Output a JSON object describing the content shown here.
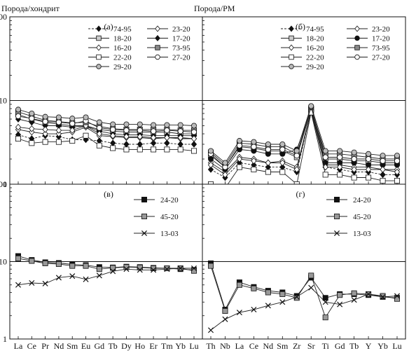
{
  "chart_data": [
    {
      "type": "line",
      "panel_label": "(а)",
      "ylabel": "Порода/хондрит",
      "yscale": "log",
      "ylim": [
        1,
        100
      ],
      "ytick_labels": [
        "1",
        "10",
        "100"
      ],
      "reference_line": 10,
      "categories": [
        "La",
        "Ce",
        "Pr",
        "Nd",
        "Sm",
        "Eu",
        "Gd",
        "Tb",
        "Dy",
        "Ho",
        "Er",
        "Tm",
        "Yb",
        "Lu"
      ],
      "show_xlabels": false,
      "legend_columns": 2,
      "series": [
        {
          "name": "74-95",
          "marker": "diamond",
          "fill": "#111",
          "dash": "3,2",
          "values": [
            3.9,
            3.5,
            3.8,
            3.7,
            3.4,
            3.4,
            3.3,
            3.1,
            3.0,
            3.0,
            3.1,
            3.1,
            3.0,
            3.0
          ]
        },
        {
          "name": "23-20",
          "marker": "diamond",
          "fill": "#fff",
          "dash": "",
          "values": [
            4.5,
            4.2,
            4.0,
            4.0,
            4.2,
            4.8,
            3.8,
            3.7,
            3.6,
            3.6,
            3.5,
            3.6,
            3.5,
            3.5
          ]
        },
        {
          "name": "18-20",
          "marker": "square",
          "fill": "#ccc",
          "dash": "",
          "values": [
            6.8,
            6.0,
            5.5,
            5.2,
            5.0,
            5.0,
            4.5,
            4.3,
            4.2,
            4.2,
            4.2,
            4.2,
            4.0,
            4.0
          ]
        },
        {
          "name": "17-20",
          "marker": "diamond",
          "fill": "#111",
          "dash": "",
          "values": [
            6.0,
            5.5,
            5.0,
            5.0,
            4.8,
            5.0,
            4.3,
            4.0,
            3.9,
            3.9,
            3.8,
            3.8,
            3.8,
            3.8
          ]
        },
        {
          "name": "16-20",
          "marker": "diamond",
          "fill": "#fff",
          "dash": "",
          "values": [
            4.8,
            4.6,
            4.5,
            4.4,
            4.4,
            5.0,
            4.0,
            3.8,
            3.7,
            3.7,
            3.6,
            3.6,
            3.6,
            3.5
          ]
        },
        {
          "name": "73-95",
          "marker": "square",
          "fill": "#888",
          "dash": "",
          "values": [
            7.3,
            6.5,
            5.8,
            5.6,
            5.4,
            5.5,
            4.9,
            4.6,
            4.5,
            4.5,
            4.5,
            4.5,
            4.4,
            4.4
          ]
        },
        {
          "name": "22-20",
          "marker": "square",
          "fill": "#fff",
          "dash": "",
          "values": [
            3.5,
            3.1,
            3.2,
            3.2,
            3.3,
            3.8,
            2.9,
            2.7,
            2.6,
            2.6,
            2.6,
            2.6,
            2.6,
            2.5
          ]
        },
        {
          "name": "27-20",
          "marker": "circle",
          "fill": "#fff",
          "dash": "",
          "values": [
            6.5,
            6.1,
            5.6,
            5.5,
            5.3,
            5.7,
            4.7,
            4.5,
            4.4,
            4.4,
            4.3,
            4.4,
            4.3,
            4.2
          ]
        },
        {
          "name": "29-20",
          "marker": "circle",
          "fill": "#bbb",
          "dash": "",
          "values": [
            7.8,
            7.0,
            6.4,
            6.3,
            6.1,
            6.3,
            5.5,
            5.2,
            5.2,
            5.2,
            5.1,
            5.1,
            5.1,
            5.0
          ]
        }
      ]
    },
    {
      "type": "line",
      "panel_label": "(б)",
      "ylabel": "Порода/PM",
      "yscale": "log",
      "ylim": [
        1,
        100
      ],
      "ytick_labels": [],
      "reference_line": 10,
      "categories": [
        "Th",
        "Nb",
        "La",
        "Ce",
        "Nd",
        "Sm",
        "Zr",
        "Sr",
        "Ti",
        "Gd",
        "Tb",
        "Y",
        "Yb",
        "Lu"
      ],
      "show_xlabels": false,
      "legend_columns": 2,
      "series": [
        {
          "name": "74-95",
          "marker": "diamond",
          "fill": "#111",
          "dash": "3,2",
          "values": [
            1.5,
            1.2,
            1.8,
            1.7,
            1.6,
            1.6,
            1.4,
            7.5,
            1.6,
            1.5,
            1.4,
            1.4,
            1.3,
            1.3
          ]
        },
        {
          "name": "23-20",
          "marker": "diamond",
          "fill": "#fff",
          "dash": "",
          "values": [
            1.8,
            1.4,
            2.1,
            2.0,
            1.8,
            1.9,
            1.6,
            7.6,
            1.7,
            1.7,
            1.6,
            1.6,
            1.5,
            1.5
          ]
        },
        {
          "name": "18-20",
          "marker": "square",
          "fill": "#ccc",
          "dash": "",
          "values": [
            2.2,
            1.6,
            2.8,
            2.7,
            2.5,
            2.5,
            2.1,
            7.8,
            2.0,
            2.0,
            1.9,
            1.9,
            1.8,
            1.8
          ]
        },
        {
          "name": "17-20",
          "marker": "circle",
          "fill": "#111",
          "dash": "",
          "values": [
            2.0,
            1.5,
            2.6,
            2.5,
            2.3,
            2.3,
            2.6,
            7.7,
            1.8,
            1.8,
            1.8,
            1.7,
            1.7,
            1.7
          ]
        },
        {
          "name": "16-20",
          "marker": "diamond",
          "fill": "#fff",
          "dash": "",
          "values": [
            1.7,
            1.3,
            2.0,
            1.9,
            1.8,
            1.8,
            1.5,
            7.4,
            1.6,
            1.6,
            1.5,
            1.5,
            1.5,
            1.4
          ]
        },
        {
          "name": "73-95",
          "marker": "square",
          "fill": "#888",
          "dash": "",
          "values": [
            2.4,
            1.7,
            3.1,
            3.0,
            2.8,
            2.8,
            2.3,
            8.0,
            2.3,
            2.3,
            2.2,
            2.1,
            2.0,
            2.0
          ]
        },
        {
          "name": "22-20",
          "marker": "square",
          "fill": "#fff",
          "dash": "",
          "values": [
            1.0,
            0.9,
            1.6,
            1.5,
            1.4,
            1.4,
            1.0,
            7.2,
            1.3,
            1.3,
            1.2,
            1.2,
            1.1,
            1.1
          ]
        },
        {
          "name": "27-20",
          "marker": "circle",
          "fill": "#fff",
          "dash": "",
          "values": [
            2.3,
            1.6,
            2.9,
            2.8,
            2.6,
            2.6,
            2.2,
            8.4,
            2.1,
            2.1,
            2.0,
            2.0,
            1.9,
            1.9
          ]
        },
        {
          "name": "29-20",
          "marker": "circle",
          "fill": "#bbb",
          "dash": "",
          "values": [
            2.5,
            1.8,
            3.3,
            3.2,
            3.0,
            3.0,
            2.5,
            8.6,
            2.5,
            2.5,
            2.4,
            2.3,
            2.2,
            2.2
          ]
        }
      ]
    },
    {
      "type": "line",
      "panel_label": "(в)",
      "ylabel": "",
      "yscale": "log",
      "ylim": [
        1,
        100
      ],
      "ytick_labels": [
        "1",
        "10",
        "100"
      ],
      "reference_line": 10,
      "categories": [
        "La",
        "Ce",
        "Pr",
        "Nd",
        "Sm",
        "Eu",
        "Gd",
        "Tb",
        "Dy",
        "Ho",
        "Er",
        "Tm",
        "Yb",
        "Lu"
      ],
      "show_xlabels": true,
      "legend_columns": 1,
      "series": [
        {
          "name": "24-20",
          "marker": "square",
          "fill": "#111",
          "dash": "",
          "values": [
            11.8,
            10.5,
            9.8,
            9.6,
            9.2,
            9.0,
            8.5,
            8.4,
            8.6,
            8.5,
            8.3,
            8.2,
            8.0,
            7.8
          ]
        },
        {
          "name": "45-20",
          "marker": "square",
          "fill": "#999",
          "dash": "",
          "values": [
            11.0,
            10.2,
            9.5,
            9.3,
            8.8,
            8.8,
            8.0,
            8.3,
            8.5,
            8.4,
            8.2,
            8.2,
            8.2,
            7.6
          ]
        },
        {
          "name": "13-03",
          "marker": "x",
          "fill": "#111",
          "dash": "",
          "values": [
            5.0,
            5.3,
            5.2,
            6.2,
            6.5,
            5.9,
            6.6,
            7.5,
            8.0,
            7.8,
            7.8,
            8.0,
            8.2,
            8.2
          ]
        }
      ]
    },
    {
      "type": "line",
      "panel_label": "(г)",
      "ylabel": "",
      "yscale": "log",
      "ylim": [
        1,
        100
      ],
      "ytick_labels": [],
      "reference_line": 10,
      "categories": [
        "Th",
        "Nb",
        "La",
        "Ce",
        "Nd",
        "Sm",
        "Zr",
        "Sr",
        "Ti",
        "Gd",
        "Tb",
        "Y",
        "Yb",
        "Lu"
      ],
      "show_xlabels": true,
      "legend_columns": 1,
      "series": [
        {
          "name": "24-20",
          "marker": "square",
          "fill": "#111",
          "dash": "",
          "values": [
            9.5,
            2.4,
            5.4,
            4.7,
            4.2,
            4.0,
            3.6,
            6.2,
            3.4,
            3.8,
            3.8,
            3.7,
            3.5,
            3.4
          ]
        },
        {
          "name": "45-20",
          "marker": "square",
          "fill": "#999",
          "dash": "",
          "values": [
            8.8,
            2.3,
            5.0,
            4.5,
            4.0,
            3.8,
            3.4,
            6.6,
            1.9,
            3.7,
            3.9,
            3.8,
            3.6,
            3.3
          ]
        },
        {
          "name": "13-03",
          "marker": "x",
          "fill": "#111",
          "dash": "",
          "values": [
            1.3,
            1.8,
            2.2,
            2.4,
            2.7,
            3.0,
            3.5,
            4.6,
            3.0,
            2.8,
            3.2,
            3.8,
            3.5,
            3.6
          ]
        }
      ]
    }
  ]
}
